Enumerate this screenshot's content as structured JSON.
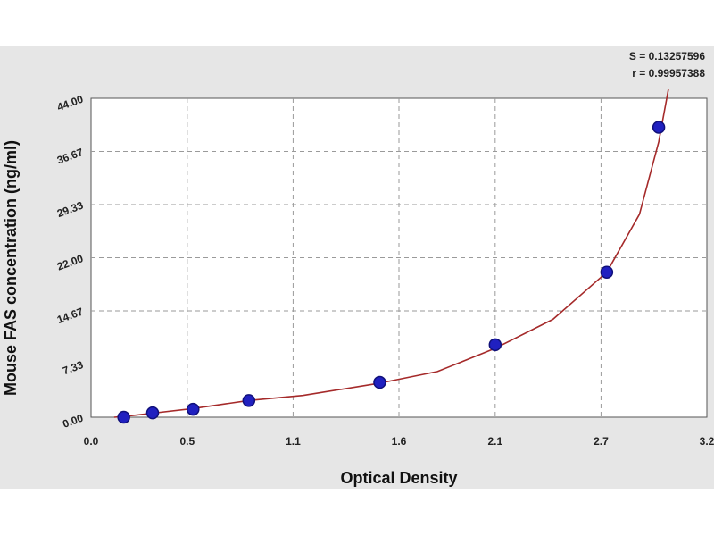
{
  "colors": {
    "background_band": "#e6e6e6",
    "plot_bg": "#ffffff",
    "grid": "#9a9a9a",
    "curve": "#a52a2a",
    "point_fill": "#2020c0",
    "point_stroke": "#10107a"
  },
  "stats": {
    "s": "S = 0.13257596",
    "r": "r = 0.99957388"
  },
  "chart_data": {
    "type": "scatter",
    "xlabel": "Optical Density",
    "ylabel": "Mouse FAS concentration (ng/ml)",
    "xlim": [
      0.0,
      3.2
    ],
    "ylim": [
      0.0,
      44.0
    ],
    "x_ticks": [
      {
        "value": 0.0,
        "label": "0.0"
      },
      {
        "value": 0.5,
        "label": "0.5"
      },
      {
        "value": 1.05,
        "label": "1.1"
      },
      {
        "value": 1.6,
        "label": "1.6"
      },
      {
        "value": 2.1,
        "label": "2.1"
      },
      {
        "value": 2.65,
        "label": "2.7"
      },
      {
        "value": 3.2,
        "label": "3.2"
      }
    ],
    "y_ticks": [
      {
        "value": 0.0,
        "label": "0.00"
      },
      {
        "value": 7.33,
        "label": "7.33"
      },
      {
        "value": 14.67,
        "label": "14.67"
      },
      {
        "value": 22.0,
        "label": "22.00"
      },
      {
        "value": 29.33,
        "label": "29.33"
      },
      {
        "value": 36.67,
        "label": "36.67"
      },
      {
        "value": 44.0,
        "label": "44.00"
      }
    ],
    "grid": true,
    "series": [
      {
        "points": [
          {
            "x": 0.17,
            "y": 0.0
          },
          {
            "x": 0.32,
            "y": 0.6
          },
          {
            "x": 0.53,
            "y": 1.1
          },
          {
            "x": 0.82,
            "y": 2.3
          },
          {
            "x": 1.5,
            "y": 4.8
          },
          {
            "x": 2.1,
            "y": 10.0
          },
          {
            "x": 2.68,
            "y": 20.0
          },
          {
            "x": 2.95,
            "y": 40.0
          }
        ]
      }
    ],
    "fit_curve": [
      {
        "x": 0.12,
        "y": 0.0
      },
      {
        "x": 0.17,
        "y": 0.1
      },
      {
        "x": 0.32,
        "y": 0.55
      },
      {
        "x": 0.53,
        "y": 1.2
      },
      {
        "x": 0.82,
        "y": 2.3
      },
      {
        "x": 1.1,
        "y": 3.0
      },
      {
        "x": 1.5,
        "y": 4.7
      },
      {
        "x": 1.8,
        "y": 6.3
      },
      {
        "x": 2.1,
        "y": 9.5
      },
      {
        "x": 2.4,
        "y": 13.5
      },
      {
        "x": 2.68,
        "y": 20.0
      },
      {
        "x": 2.85,
        "y": 28.0
      },
      {
        "x": 2.95,
        "y": 38.0
      },
      {
        "x": 3.0,
        "y": 46.0
      }
    ]
  }
}
